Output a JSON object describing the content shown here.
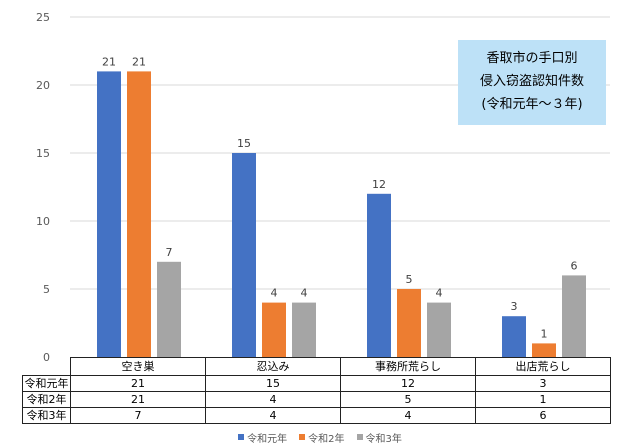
{
  "chart_data": {
    "type": "bar",
    "title": [
      "香取市の手口別",
      "侵入窃盗認知件数",
      "(令和元年～３年)"
    ],
    "categories": [
      "空き巣",
      "忍込み",
      "事務所荒らし",
      "出店荒らし"
    ],
    "series": [
      {
        "name": "令和元年",
        "values": [
          21,
          15,
          12,
          3
        ],
        "color": "#4472C4"
      },
      {
        "name": "令和2年",
        "values": [
          21,
          4,
          5,
          1
        ],
        "color": "#ED7D31"
      },
      {
        "name": "令和3年",
        "values": [
          7,
          4,
          4,
          6
        ],
        "color": "#A5A5A5"
      }
    ],
    "ylim": [
      0,
      25
    ],
    "yticks": [
      0,
      5,
      10,
      15,
      20,
      25
    ],
    "grid": true,
    "data_labels": true,
    "data_table": true,
    "legend": "bottom",
    "title_box_color": "#BDE1F7"
  }
}
